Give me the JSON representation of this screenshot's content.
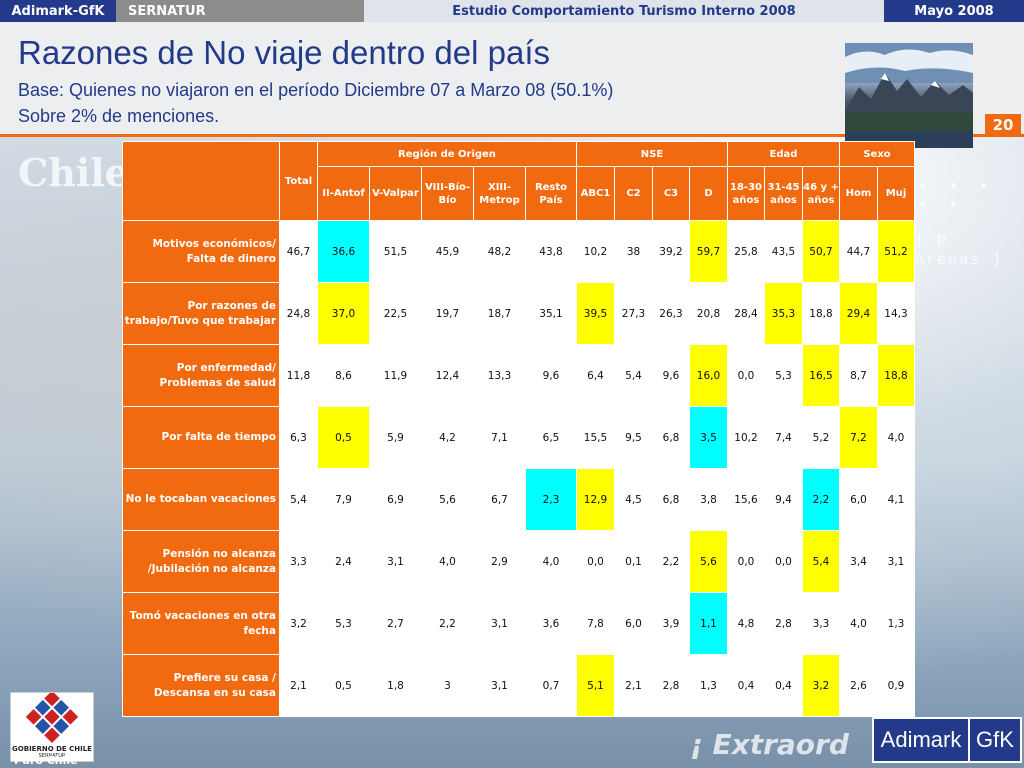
{
  "header": {
    "left": "Adimark-GfK",
    "client": "SERNATUR",
    "study": "Estudio Comportamiento Turismo Interno 2008",
    "date": "Mayo 2008"
  },
  "slide": {
    "title": "Razones de No viaje dentro del país",
    "subtitle": "Base: Quienes no viajaron en el período Diciembre 07 a Marzo 08 (50.1%)",
    "subtitle2": "Sobre 2% de menciones.",
    "page_number": "20"
  },
  "background": {
    "chile": "Chile",
    "arenas": "[ P  Arenas ]",
    "extra": "¡ Extraord"
  },
  "table": {
    "total_label": "Total",
    "groups": [
      "Región de Origen",
      "NSE",
      "Edad",
      "Sexo"
    ],
    "columns": [
      "II-Antof",
      "V-Valpar",
      "VIII-Bío-Bío",
      "XIII-Metrop",
      "Resto País",
      "ABC1",
      "C2",
      "C3",
      "D",
      "18-30 años",
      "31-45 años",
      "46 y + años",
      "Hom",
      "Muj"
    ],
    "rows": [
      {
        "label": "Motivos económicos/ Falta de dinero",
        "values": [
          "46,7",
          "36,6",
          "51,5",
          "45,9",
          "48,2",
          "43,8",
          "10,2",
          "38",
          "39,2",
          "59,7",
          "25,8",
          "43,5",
          "50,7",
          "44,7",
          "51,2"
        ],
        "hl": [
          "",
          "k",
          "",
          "",
          "",
          "",
          "",
          "",
          "",
          "y",
          "",
          "",
          "y",
          "",
          "y"
        ]
      },
      {
        "label": "Por razones de trabajo/Tuvo que trabajar",
        "values": [
          "24,8",
          "37,0",
          "22,5",
          "19,7",
          "18,7",
          "35,1",
          "39,5",
          "27,3",
          "26,3",
          "20,8",
          "28,4",
          "35,3",
          "18,8",
          "29,4",
          "14,3"
        ],
        "hl": [
          "",
          "y",
          "",
          "",
          "",
          "",
          "y",
          "",
          "",
          "",
          "",
          "y",
          "",
          "y",
          ""
        ]
      },
      {
        "label": "Por enfermedad/ Problemas de salud",
        "values": [
          "11,8",
          "8,6",
          "11,9",
          "12,4",
          "13,3",
          "9,6",
          "6,4",
          "5,4",
          "9,6",
          "16,0",
          "0,0",
          "5,3",
          "16,5",
          "8,7",
          "18,8"
        ],
        "hl": [
          "",
          "",
          "",
          "",
          "",
          "",
          "",
          "",
          "",
          "y",
          "",
          "",
          "y",
          "",
          "y"
        ]
      },
      {
        "label": "Por falta de tiempo",
        "values": [
          "6,3",
          "0,5",
          "5,9",
          "4,2",
          "7,1",
          "6,5",
          "15,5",
          "9,5",
          "6,8",
          "3,5",
          "10,2",
          "7,4",
          "5,2",
          "7,2",
          "4,0"
        ],
        "hl": [
          "",
          "y",
          "",
          "",
          "",
          "",
          "",
          "",
          "",
          "k",
          "",
          "",
          "",
          "y",
          ""
        ]
      },
      {
        "label": "No le tocaban vacaciones",
        "values": [
          "5,4",
          "7,9",
          "6,9",
          "5,6",
          "6,7",
          "2,3",
          "12,9",
          "4,5",
          "6,8",
          "3,8",
          "15,6",
          "9,4",
          "2,2",
          "6,0",
          "4,1"
        ],
        "hl": [
          "",
          "",
          "",
          "",
          "",
          "k",
          "y",
          "",
          "",
          "",
          "",
          "",
          "k",
          "",
          ""
        ]
      },
      {
        "label": "Pensión no alcanza /Jubilación no alcanza",
        "values": [
          "3,3",
          "2,4",
          "3,1",
          "4,0",
          "2,9",
          "4,0",
          "0,0",
          "0,1",
          "2,2",
          "5,6",
          "0,0",
          "0,0",
          "5,4",
          "3,4",
          "3,1"
        ],
        "hl": [
          "",
          "",
          "",
          "",
          "",
          "",
          "",
          "",
          "",
          "y",
          "",
          "",
          "y",
          "",
          ""
        ]
      },
      {
        "label": "Tomó vacaciones en otra fecha",
        "values": [
          "3,2",
          "5,3",
          "2,7",
          "2,2",
          "3,1",
          "3,6",
          "7,8",
          "6,0",
          "3,9",
          "1,1",
          "4,8",
          "2,8",
          "3,3",
          "4,0",
          "1,3"
        ],
        "hl": [
          "",
          "",
          "",
          "",
          "",
          "",
          "",
          "",
          "",
          "k",
          "",
          "",
          "",
          "",
          ""
        ]
      },
      {
        "label": "Prefiere su casa / Descansa en su casa",
        "values": [
          "2,1",
          "0,5",
          "1,8",
          "3",
          "3,1",
          "0,7",
          "5,1",
          "2,1",
          "2,8",
          "1,3",
          "0,4",
          "0,4",
          "3,2",
          "2,6",
          "0,9"
        ],
        "hl": [
          "",
          "",
          "",
          "",
          "",
          "",
          "y",
          "",
          "",
          "",
          "",
          "",
          "y",
          "",
          ""
        ]
      }
    ]
  },
  "colors": {
    "orange": "#f26a10",
    "yellow": "#ffff00",
    "cyan": "#00ffff",
    "navy": "#233a8a"
  },
  "logos": {
    "gob_line1": "GOBIERNO DE CHILE",
    "gob_line2": "SERNATUR",
    "puro": "Puro Chile",
    "adimark": "Adimark",
    "gfk": "GfK"
  }
}
